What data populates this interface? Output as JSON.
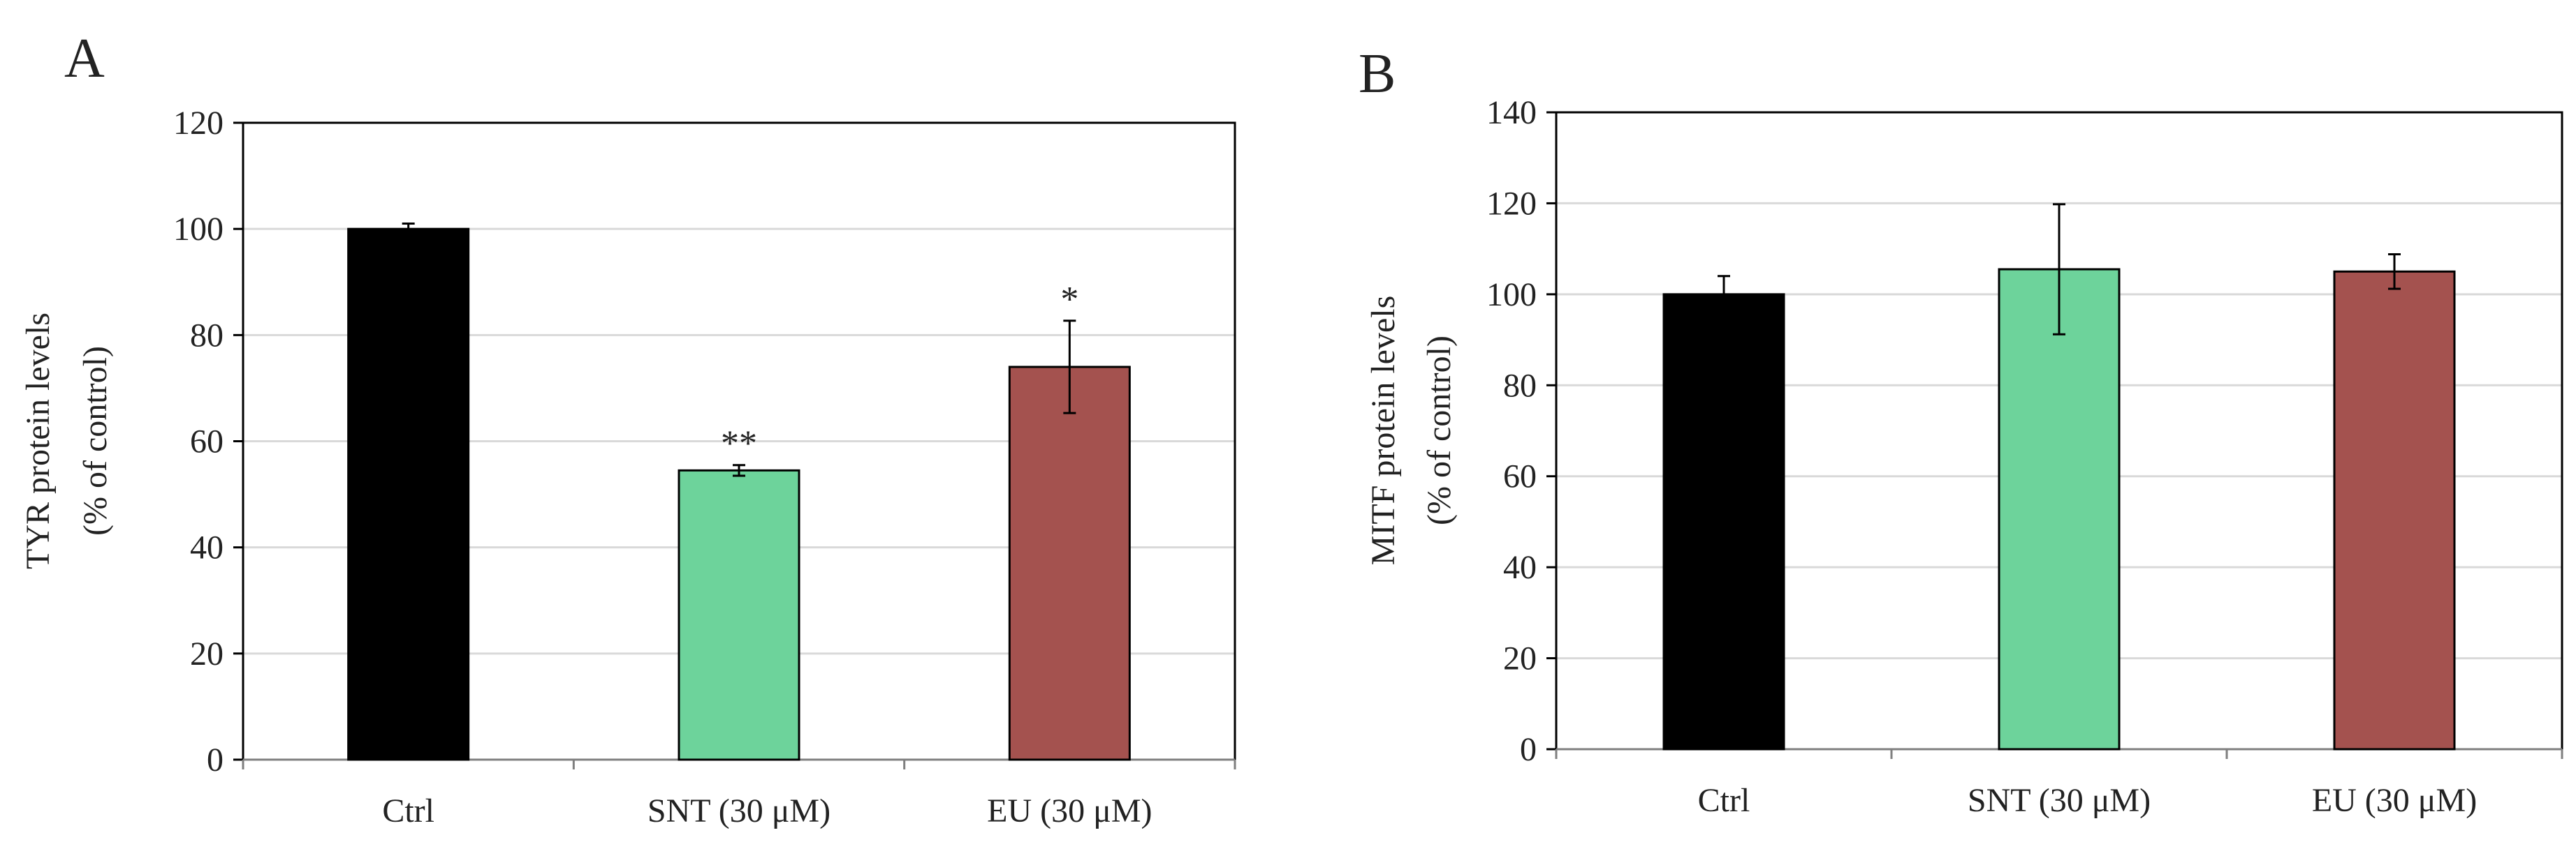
{
  "chart_data": [
    {
      "type": "bar",
      "panel": "A",
      "title": "",
      "ylabel_lines": [
        "TYR protein levels",
        "(% of control)"
      ],
      "xlabel": "",
      "categories": [
        "Ctrl",
        "SNT (30 μM)",
        "EU (30 μM)"
      ],
      "values": [
        100,
        54.5,
        74
      ],
      "errors": [
        1,
        1,
        8.7
      ],
      "significance": [
        "",
        "**",
        "*"
      ],
      "colors": [
        "#000000",
        "#6dd39b",
        "#a4524f"
      ],
      "ylim": [
        0,
        120
      ],
      "yticks": [
        0,
        20,
        40,
        60,
        80,
        100,
        120
      ],
      "grid": true,
      "legend": "none"
    },
    {
      "type": "bar",
      "panel": "B",
      "title": "",
      "ylabel_lines": [
        "MITF protein levels",
        "(% of control)"
      ],
      "xlabel": "",
      "categories": [
        "Ctrl",
        "SNT (30 μM)",
        "EU (30 μM)"
      ],
      "values": [
        100,
        105.5,
        105
      ],
      "errors": [
        4,
        14.3,
        3.8
      ],
      "significance": [
        "",
        "",
        ""
      ],
      "colors": [
        "#000000",
        "#6dd39b",
        "#a4524f"
      ],
      "ylim": [
        0,
        140
      ],
      "yticks": [
        0,
        20,
        40,
        60,
        80,
        100,
        120,
        140
      ],
      "grid": true,
      "legend": "none"
    }
  ]
}
